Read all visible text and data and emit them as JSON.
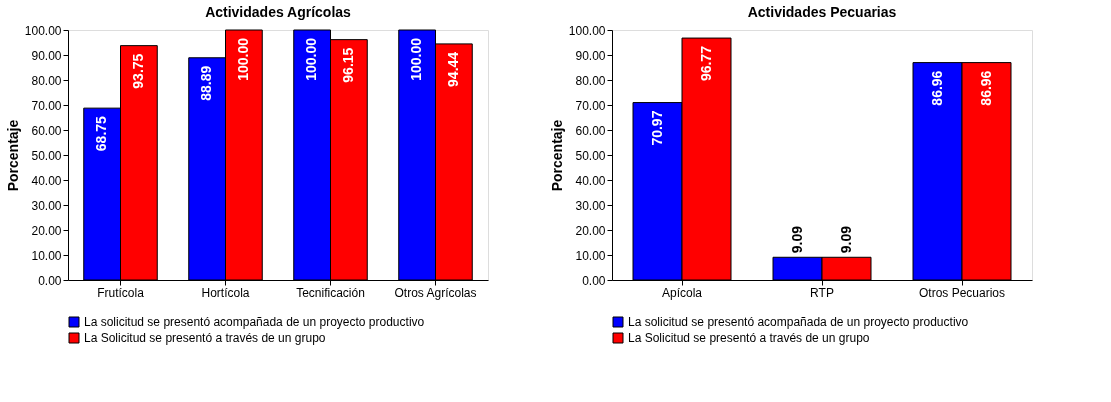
{
  "chart_data": [
    {
      "type": "bar",
      "title": "Actividades Agrícolas",
      "ylabel": "Porcentaje",
      "categories": [
        "Frutícola",
        "Hortícola",
        "Tecnificación",
        "Otros Agrícolas"
      ],
      "series": [
        {
          "name": "La solicitud se presentó acompañada de un proyecto productivo",
          "color": "#0000ff",
          "values": [
            68.75,
            88.89,
            100,
            100
          ],
          "value_labels": [
            "68.75",
            "88.89",
            "100.00",
            "100.00"
          ]
        },
        {
          "name": "La Solicitud se presentó a través de un grupo",
          "color": "#ff0000",
          "values": [
            93.75,
            100,
            96.15,
            94.44
          ],
          "value_labels": [
            "93.75",
            "100.00",
            "96.15",
            "94.44"
          ]
        }
      ],
      "ylim": [
        0,
        100
      ],
      "yticks": [
        {
          "value": 0,
          "label": "0.00"
        },
        {
          "value": 10,
          "label": "10.00"
        },
        {
          "value": 20,
          "label": "20.00"
        },
        {
          "value": 30,
          "label": "30.00"
        },
        {
          "value": 40,
          "label": "40.00"
        },
        {
          "value": 50,
          "label": "50.00"
        },
        {
          "value": 60,
          "label": "60.00"
        },
        {
          "value": 70,
          "label": "70.00"
        },
        {
          "value": 80,
          "label": "80.00"
        },
        {
          "value": 90,
          "label": "90.00"
        },
        {
          "value": 100,
          "label": "100.00"
        }
      ],
      "legend": "bottom",
      "grid": false
    },
    {
      "type": "bar",
      "title": "Actividades Pecuarias",
      "ylabel": "Porcentaje",
      "categories": [
        "Apícola",
        "RTP",
        "Otros Pecuarios"
      ],
      "series": [
        {
          "name": "La solicitud se presentó acompañada de un proyecto productivo",
          "color": "#0000ff",
          "values": [
            70.97,
            9.09,
            86.96
          ],
          "value_labels": [
            "70.97",
            "9.09",
            "86.96"
          ]
        },
        {
          "name": "La Solicitud se presentó a través de un grupo",
          "color": "#ff0000",
          "values": [
            96.77,
            9.09,
            86.96
          ],
          "value_labels": [
            "96.77",
            "9.09",
            "86.96"
          ]
        }
      ],
      "ylim": [
        0,
        100
      ],
      "yticks": [
        {
          "value": 0,
          "label": "0.00"
        },
        {
          "value": 10,
          "label": "10.00"
        },
        {
          "value": 20,
          "label": "20.00"
        },
        {
          "value": 30,
          "label": "30.00"
        },
        {
          "value": 40,
          "label": "40.00"
        },
        {
          "value": 50,
          "label": "50.00"
        },
        {
          "value": 60,
          "label": "60.00"
        },
        {
          "value": 70,
          "label": "70.00"
        },
        {
          "value": 80,
          "label": "80.00"
        },
        {
          "value": 90,
          "label": "90.00"
        },
        {
          "value": 100,
          "label": "100.00"
        }
      ],
      "legend": "bottom",
      "grid": false
    }
  ]
}
